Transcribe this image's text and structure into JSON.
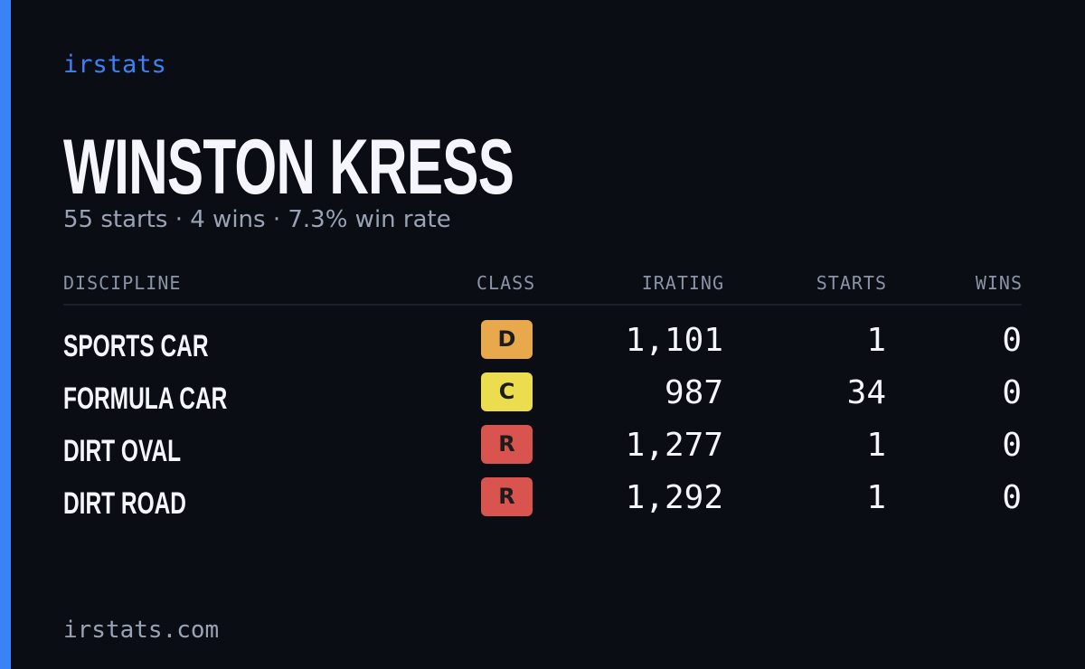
{
  "brand": "irstats",
  "driver": {
    "name": "WINSTON KRESS",
    "summary": "55 starts · 4 wins · 7.3% win rate"
  },
  "table": {
    "headers": [
      "DISCIPLINE",
      "CLASS",
      "IRATING",
      "STARTS",
      "WINS"
    ],
    "rows": [
      {
        "discipline": "SPORTS CAR",
        "class": "D",
        "class_color": "#e8a84c",
        "irating": "1,101",
        "starts": "1",
        "wins": "0"
      },
      {
        "discipline": "FORMULA CAR",
        "class": "C",
        "class_color": "#ebdd4d",
        "irating": "987",
        "starts": "34",
        "wins": "0"
      },
      {
        "discipline": "DIRT OVAL",
        "class": "R",
        "class_color": "#d9534f",
        "irating": "1,277",
        "starts": "1",
        "wins": "0"
      },
      {
        "discipline": "DIRT ROAD",
        "class": "R",
        "class_color": "#d9534f",
        "irating": "1,292",
        "starts": "1",
        "wins": "0"
      }
    ]
  },
  "footer": "irstats.com"
}
